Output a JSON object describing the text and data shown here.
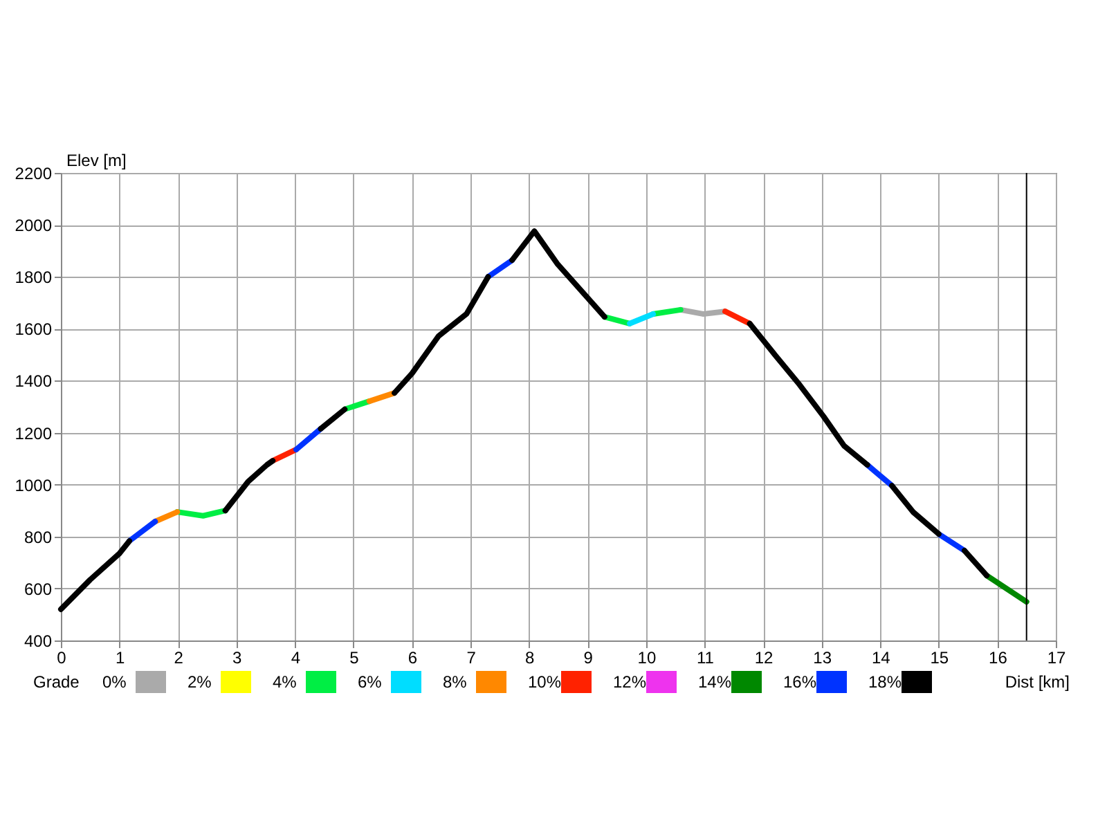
{
  "chart_data": {
    "type": "line",
    "xlabel": "Dist [km]",
    "ylabel": "Elev [m]",
    "legend_title": "Grade",
    "legend": "bottom",
    "grid": true,
    "line_style": "solid",
    "marker": "none",
    "xlim": [
      0,
      17
    ],
    "xticks": [
      0,
      1,
      2,
      3,
      4,
      5,
      6,
      7,
      8,
      9,
      10,
      11,
      12,
      13,
      14,
      15,
      16,
      17
    ],
    "ylim": [
      400,
      2200
    ],
    "yticks": [
      400,
      600,
      800,
      1000,
      1200,
      1400,
      1600,
      1800,
      2000,
      2200
    ],
    "ref_lines": [
      {
        "axis": "x",
        "value": 16.5,
        "color": "#000000"
      }
    ],
    "series": [
      {
        "name": "0%",
        "color": "#aaaaaa",
        "x": [
          10.59,
          10.97,
          11.35
        ],
        "values": [
          1673,
          1657,
          1667
        ]
      },
      {
        "name": "2%",
        "color": "#ffff00"
      },
      {
        "name": "4%",
        "color": "#00ee44",
        "x": [
          1.99,
          2.43,
          2.81,
          null,
          4.85,
          5.27,
          null,
          9.29,
          9.72,
          null,
          10.12,
          10.59
        ],
        "values": [
          895,
          880,
          900,
          null,
          1290,
          1321,
          null,
          1646,
          1620,
          null,
          1657,
          1673
        ]
      },
      {
        "name": "6%",
        "color": "#00ddff",
        "x": [
          9.72,
          10.12
        ],
        "values": [
          1620,
          1657
        ]
      },
      {
        "name": "8%",
        "color": "#ff8800",
        "x": [
          1.61,
          1.99,
          null,
          5.27,
          5.7
        ],
        "values": [
          858,
          895,
          null,
          1321,
          1353
        ]
      },
      {
        "name": "10%",
        "color": "#ff2200",
        "x": [
          3.62,
          4.02,
          null,
          11.35,
          11.77
        ],
        "values": [
          1092,
          1135,
          null,
          1667,
          1620
        ]
      },
      {
        "name": "12%",
        "color": "#ee33ee"
      },
      {
        "name": "14%",
        "color": "#008800",
        "x": [
          15.82,
          16.5
        ],
        "values": [
          650,
          549
        ]
      },
      {
        "name": "16%",
        "color": "#0033ff",
        "x": [
          1.17,
          1.61,
          null,
          4.02,
          4.44,
          null,
          7.3,
          7.71,
          null,
          13.78,
          14.2,
          null,
          15.0,
          15.44
        ],
        "values": [
          783,
          858,
          null,
          1135,
          1215,
          null,
          1800,
          1864,
          null,
          1076,
          996,
          null,
          810,
          746
        ]
      },
      {
        "name": "18%",
        "color": "#000000",
        "x": [
          0,
          0.5,
          1.0,
          1.17,
          null,
          2.81,
          3.2,
          3.52,
          3.62,
          null,
          4.44,
          4.85,
          null,
          5.7,
          6.0,
          6.45,
          6.93,
          7.3,
          null,
          7.71,
          8.09,
          8.49,
          9.29,
          null,
          11.77,
          12.2,
          12.62,
          13.03,
          13.38,
          13.78,
          null,
          14.2,
          14.56,
          15.0,
          null,
          15.44,
          15.82
        ],
        "values": [
          520,
          634,
          735,
          783,
          null,
          900,
          1012,
          1076,
          1092,
          null,
          1215,
          1290,
          null,
          1353,
          1428,
          1571,
          1657,
          1800,
          null,
          1864,
          1976,
          1848,
          1646,
          null,
          1620,
          1500,
          1385,
          1263,
          1150,
          1076,
          null,
          996,
          895,
          810,
          null,
          746,
          650
        ]
      }
    ]
  }
}
